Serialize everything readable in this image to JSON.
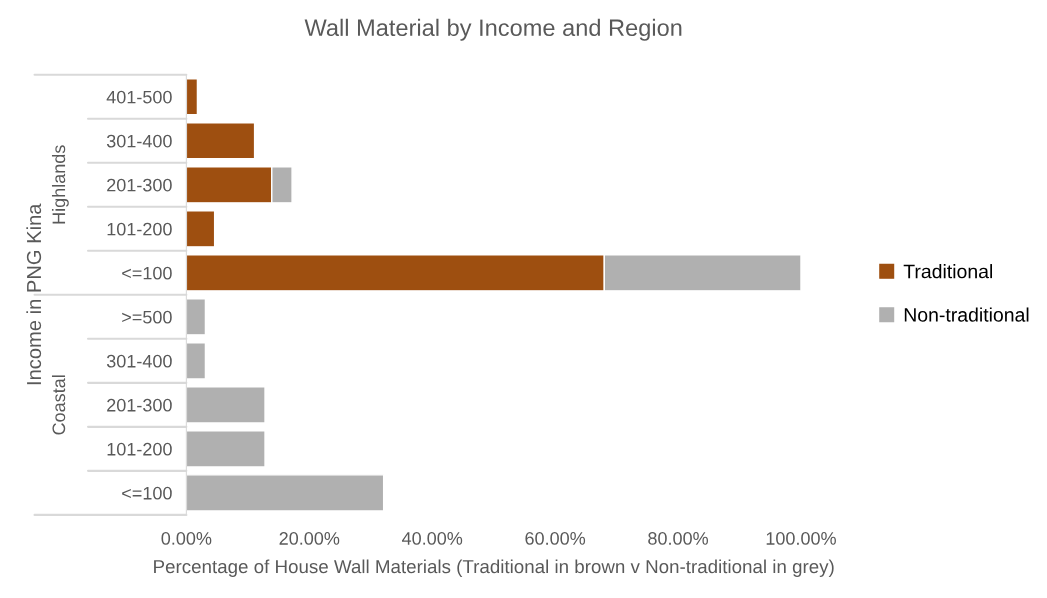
{
  "chart_data": {
    "type": "bar",
    "orientation": "horizontal",
    "stacked": true,
    "title": "Wall Material by Income and Region",
    "xlabel": "Percentage of House Wall Materials (Traditional in brown v Non-traditional in grey)",
    "ylabel": "Income in PNG Kina",
    "categories": [
      "401-500",
      "301-400",
      "201-300",
      "101-200",
      "<=100",
      ">=500",
      "301-400",
      "201-300",
      "101-200",
      "<=100"
    ],
    "series": [
      {
        "name": "Traditional",
        "color": "#9e4f10",
        "values": [
          1.8,
          11.1,
          13.9,
          4.6,
          68.0,
          null,
          null,
          null,
          null,
          null
        ]
      },
      {
        "name": "Non-traditional",
        "color": "#b0b0b0",
        "values": [
          null,
          null,
          3.3,
          null,
          32.0,
          3.1,
          3.1,
          12.8,
          12.8,
          32.1
        ]
      }
    ],
    "annotations": [
      "Highlands",
      "Coastal"
    ],
    "xlim": [
      0,
      100
    ],
    "xticks": [
      {
        "value": 0,
        "label": "0.00%"
      },
      {
        "value": 20,
        "label": "20.00%"
      },
      {
        "value": 40,
        "label": "40.00%"
      },
      {
        "value": 60,
        "label": "60.00%"
      },
      {
        "value": 80,
        "label": "80.00%"
      },
      {
        "value": 100,
        "label": "100.00%"
      }
    ],
    "legend": "right"
  }
}
